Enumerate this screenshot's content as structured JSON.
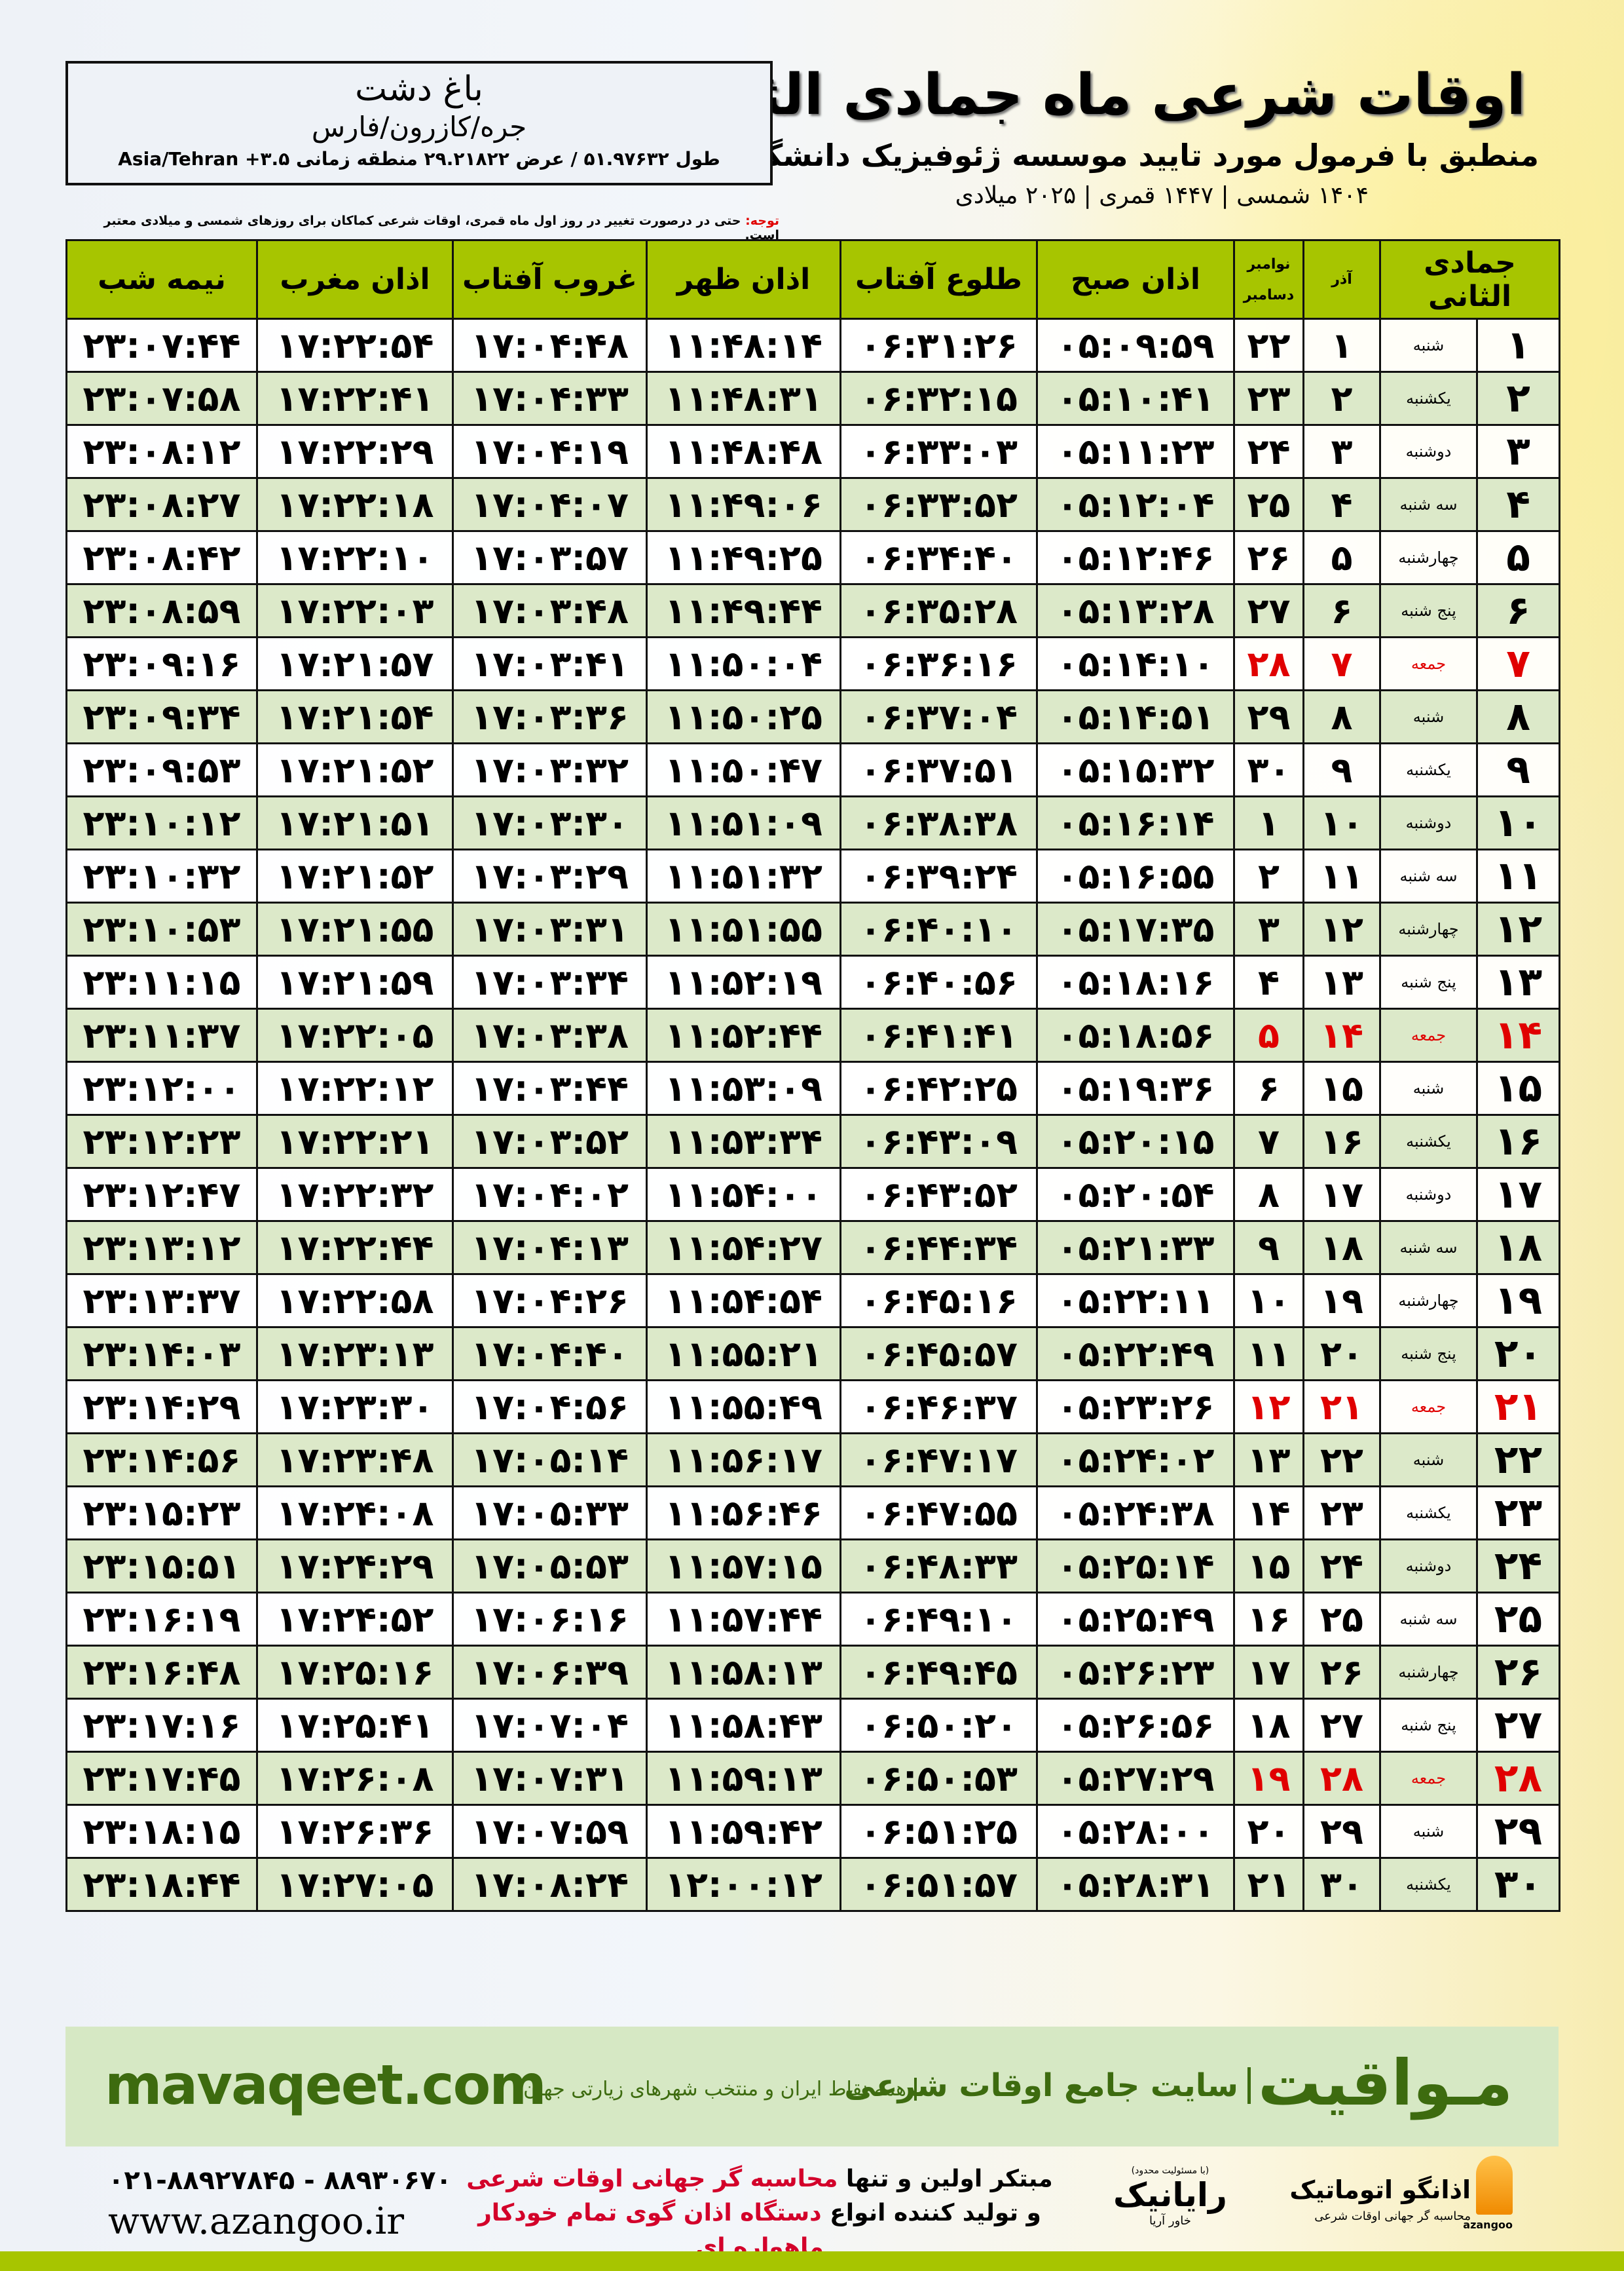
{
  "header": {
    "title": "اوقات شرعی ماه جمادی الثانی",
    "subtitle": "منطبق با فرمول مورد تایید موسسه ژئوفیزیک دانشگاه تهران",
    "years": "۱۴۰۴ شمسی | ۱۴۴۷ قمری | ۲۰۲۵ میلادی"
  },
  "location": {
    "city": "باغ دشت",
    "region": "جره/کازرون/فارس",
    "coords": "طول ۵۱.۹۷۶۳۲ / عرض ۲۹.۲۱۸۲۲ منطقه زمانی Asia/Tehran +۳.۵"
  },
  "note": {
    "label": "توجه:",
    "text": "حتی در درصورت تغییر در روز اول ماه قمری، اوقات شرعی کماکان برای روزهای شمسی و میلادی معتبر است."
  },
  "colors": {
    "header_green": "#a7c500",
    "row_green": "#dce9c9",
    "friday_red": "#e00000",
    "brand_green": "#3d6b0f"
  },
  "table": {
    "headers": {
      "month": "جمادی الثانی",
      "azar": "آذر",
      "november": "نوامبر",
      "december": "دسامبر",
      "fajr": "اذان صبح",
      "sunrise": "طلوع آفتاب",
      "dhuhr": "اذان ظهر",
      "sunset": "غروب آفتاب",
      "maghrib": "اذان مغرب",
      "midnight": "نیمه شب"
    },
    "rows": [
      [
        "۱",
        "شنبه",
        "۱",
        "۲۲",
        "۰۵:۰۹:۵۹",
        "۰۶:۳۱:۲۶",
        "۱۱:۴۸:۱۴",
        "۱۷:۰۴:۴۸",
        "۱۷:۲۲:۵۴",
        "۲۳:۰۷:۴۴"
      ],
      [
        "۲",
        "یکشنبه",
        "۲",
        "۲۳",
        "۰۵:۱۰:۴۱",
        "۰۶:۳۲:۱۵",
        "۱۱:۴۸:۳۱",
        "۱۷:۰۴:۳۳",
        "۱۷:۲۲:۴۱",
        "۲۳:۰۷:۵۸"
      ],
      [
        "۳",
        "دوشنبه",
        "۳",
        "۲۴",
        "۰۵:۱۱:۲۳",
        "۰۶:۳۳:۰۳",
        "۱۱:۴۸:۴۸",
        "۱۷:۰۴:۱۹",
        "۱۷:۲۲:۲۹",
        "۲۳:۰۸:۱۲"
      ],
      [
        "۴",
        "سه شنبه",
        "۴",
        "۲۵",
        "۰۵:۱۲:۰۴",
        "۰۶:۳۳:۵۲",
        "۱۱:۴۹:۰۶",
        "۱۷:۰۴:۰۷",
        "۱۷:۲۲:۱۸",
        "۲۳:۰۸:۲۷"
      ],
      [
        "۵",
        "چهارشنبه",
        "۵",
        "۲۶",
        "۰۵:۱۲:۴۶",
        "۰۶:۳۴:۴۰",
        "۱۱:۴۹:۲۵",
        "۱۷:۰۳:۵۷",
        "۱۷:۲۲:۱۰",
        "۲۳:۰۸:۴۲"
      ],
      [
        "۶",
        "پنج شنبه",
        "۶",
        "۲۷",
        "۰۵:۱۳:۲۸",
        "۰۶:۳۵:۲۸",
        "۱۱:۴۹:۴۴",
        "۱۷:۰۳:۴۸",
        "۱۷:۲۲:۰۳",
        "۲۳:۰۸:۵۹"
      ],
      [
        "۷",
        "جمعه",
        "۷",
        "۲۸",
        "۰۵:۱۴:۱۰",
        "۰۶:۳۶:۱۶",
        "۱۱:۵۰:۰۴",
        "۱۷:۰۳:۴۱",
        "۱۷:۲۱:۵۷",
        "۲۳:۰۹:۱۶"
      ],
      [
        "۸",
        "شنبه",
        "۸",
        "۲۹",
        "۰۵:۱۴:۵۱",
        "۰۶:۳۷:۰۴",
        "۱۱:۵۰:۲۵",
        "۱۷:۰۳:۳۶",
        "۱۷:۲۱:۵۴",
        "۲۳:۰۹:۳۴"
      ],
      [
        "۹",
        "یکشنبه",
        "۹",
        "۳۰",
        "۰۵:۱۵:۳۲",
        "۰۶:۳۷:۵۱",
        "۱۱:۵۰:۴۷",
        "۱۷:۰۳:۳۲",
        "۱۷:۲۱:۵۲",
        "۲۳:۰۹:۵۳"
      ],
      [
        "۱۰",
        "دوشنبه",
        "۱۰",
        "۱",
        "۰۵:۱۶:۱۴",
        "۰۶:۳۸:۳۸",
        "۱۱:۵۱:۰۹",
        "۱۷:۰۳:۳۰",
        "۱۷:۲۱:۵۱",
        "۲۳:۱۰:۱۲"
      ],
      [
        "۱۱",
        "سه شنبه",
        "۱۱",
        "۲",
        "۰۵:۱۶:۵۵",
        "۰۶:۳۹:۲۴",
        "۱۱:۵۱:۳۲",
        "۱۷:۰۳:۲۹",
        "۱۷:۲۱:۵۲",
        "۲۳:۱۰:۳۲"
      ],
      [
        "۱۲",
        "چهارشنبه",
        "۱۲",
        "۳",
        "۰۵:۱۷:۳۵",
        "۰۶:۴۰:۱۰",
        "۱۱:۵۱:۵۵",
        "۱۷:۰۳:۳۱",
        "۱۷:۲۱:۵۵",
        "۲۳:۱۰:۵۳"
      ],
      [
        "۱۳",
        "پنج شنبه",
        "۱۳",
        "۴",
        "۰۵:۱۸:۱۶",
        "۰۶:۴۰:۵۶",
        "۱۱:۵۲:۱۹",
        "۱۷:۰۳:۳۴",
        "۱۷:۲۱:۵۹",
        "۲۳:۱۱:۱۵"
      ],
      [
        "۱۴",
        "جمعه",
        "۱۴",
        "۵",
        "۰۵:۱۸:۵۶",
        "۰۶:۴۱:۴۱",
        "۱۱:۵۲:۴۴",
        "۱۷:۰۳:۳۸",
        "۱۷:۲۲:۰۵",
        "۲۳:۱۱:۳۷"
      ],
      [
        "۱۵",
        "شنبه",
        "۱۵",
        "۶",
        "۰۵:۱۹:۳۶",
        "۰۶:۴۲:۲۵",
        "۱۱:۵۳:۰۹",
        "۱۷:۰۳:۴۴",
        "۱۷:۲۲:۱۲",
        "۲۳:۱۲:۰۰"
      ],
      [
        "۱۶",
        "یکشنبه",
        "۱۶",
        "۷",
        "۰۵:۲۰:۱۵",
        "۰۶:۴۳:۰۹",
        "۱۱:۵۳:۳۴",
        "۱۷:۰۳:۵۲",
        "۱۷:۲۲:۲۱",
        "۲۳:۱۲:۲۳"
      ],
      [
        "۱۷",
        "دوشنبه",
        "۱۷",
        "۸",
        "۰۵:۲۰:۵۴",
        "۰۶:۴۳:۵۲",
        "۱۱:۵۴:۰۰",
        "۱۷:۰۴:۰۲",
        "۱۷:۲۲:۳۲",
        "۲۳:۱۲:۴۷"
      ],
      [
        "۱۸",
        "سه شنبه",
        "۱۸",
        "۹",
        "۰۵:۲۱:۳۳",
        "۰۶:۴۴:۳۴",
        "۱۱:۵۴:۲۷",
        "۱۷:۰۴:۱۳",
        "۱۷:۲۲:۴۴",
        "۲۳:۱۳:۱۲"
      ],
      [
        "۱۹",
        "چهارشنبه",
        "۱۹",
        "۱۰",
        "۰۵:۲۲:۱۱",
        "۰۶:۴۵:۱۶",
        "۱۱:۵۴:۵۴",
        "۱۷:۰۴:۲۶",
        "۱۷:۲۲:۵۸",
        "۲۳:۱۳:۳۷"
      ],
      [
        "۲۰",
        "پنج شنبه",
        "۲۰",
        "۱۱",
        "۰۵:۲۲:۴۹",
        "۰۶:۴۵:۵۷",
        "۱۱:۵۵:۲۱",
        "۱۷:۰۴:۴۰",
        "۱۷:۲۳:۱۳",
        "۲۳:۱۴:۰۳"
      ],
      [
        "۲۱",
        "جمعه",
        "۲۱",
        "۱۲",
        "۰۵:۲۳:۲۶",
        "۰۶:۴۶:۳۷",
        "۱۱:۵۵:۴۹",
        "۱۷:۰۴:۵۶",
        "۱۷:۲۳:۳۰",
        "۲۳:۱۴:۲۹"
      ],
      [
        "۲۲",
        "شنبه",
        "۲۲",
        "۱۳",
        "۰۵:۲۴:۰۲",
        "۰۶:۴۷:۱۷",
        "۱۱:۵۶:۱۷",
        "۱۷:۰۵:۱۴",
        "۱۷:۲۳:۴۸",
        "۲۳:۱۴:۵۶"
      ],
      [
        "۲۳",
        "یکشنبه",
        "۲۳",
        "۱۴",
        "۰۵:۲۴:۳۸",
        "۰۶:۴۷:۵۵",
        "۱۱:۵۶:۴۶",
        "۱۷:۰۵:۳۳",
        "۱۷:۲۴:۰۸",
        "۲۳:۱۵:۲۳"
      ],
      [
        "۲۴",
        "دوشنبه",
        "۲۴",
        "۱۵",
        "۰۵:۲۵:۱۴",
        "۰۶:۴۸:۳۳",
        "۱۱:۵۷:۱۵",
        "۱۷:۰۵:۵۳",
        "۱۷:۲۴:۲۹",
        "۲۳:۱۵:۵۱"
      ],
      [
        "۲۵",
        "سه شنبه",
        "۲۵",
        "۱۶",
        "۰۵:۲۵:۴۹",
        "۰۶:۴۹:۱۰",
        "۱۱:۵۷:۴۴",
        "۱۷:۰۶:۱۶",
        "۱۷:۲۴:۵۲",
        "۲۳:۱۶:۱۹"
      ],
      [
        "۲۶",
        "چهارشنبه",
        "۲۶",
        "۱۷",
        "۰۵:۲۶:۲۳",
        "۰۶:۴۹:۴۵",
        "۱۱:۵۸:۱۳",
        "۱۷:۰۶:۳۹",
        "۱۷:۲۵:۱۶",
        "۲۳:۱۶:۴۸"
      ],
      [
        "۲۷",
        "پنج شنبه",
        "۲۷",
        "۱۸",
        "۰۵:۲۶:۵۶",
        "۰۶:۵۰:۲۰",
        "۱۱:۵۸:۴۳",
        "۱۷:۰۷:۰۴",
        "۱۷:۲۵:۴۱",
        "۲۳:۱۷:۱۶"
      ],
      [
        "۲۸",
        "جمعه",
        "۲۸",
        "۱۹",
        "۰۵:۲۷:۲۹",
        "۰۶:۵۰:۵۳",
        "۱۱:۵۹:۱۳",
        "۱۷:۰۷:۳۱",
        "۱۷:۲۶:۰۸",
        "۲۳:۱۷:۴۵"
      ],
      [
        "۲۹",
        "شنبه",
        "۲۹",
        "۲۰",
        "۰۵:۲۸:۰۰",
        "۰۶:۵۱:۲۵",
        "۱۱:۵۹:۴۲",
        "۱۷:۰۷:۵۹",
        "۱۷:۲۶:۳۶",
        "۲۳:۱۸:۱۵"
      ],
      [
        "۳۰",
        "یکشنبه",
        "۳۰",
        "۲۱",
        "۰۵:۲۸:۳۱",
        "۰۶:۵۱:۵۷",
        "۱۲:۰۰:۱۲",
        "۱۷:۰۸:۲۴",
        "۱۷:۲۷:۰۵",
        "۲۳:۱۸:۴۴"
      ]
    ]
  },
  "banner": {
    "logo": "مـواقیت",
    "site": "سایت جامع اوقات شرعی",
    "tagline": "همه نقاط ایران و منتخب شهرهای زیارتی جهان",
    "url": "mavaqeet.com"
  },
  "footer": {
    "phone": "۰۲۱-۸۸۹۲۷۸۴۵ - ۸۸۹۳۰۶۷۰",
    "website": "www.azangoo.ir",
    "promo1_a": "مبتکر اولین و تنها ",
    "promo1_b": "محاسبه گر جهانی اوقات شرعی",
    "promo2_a": "و تولید کننده انواع ",
    "promo2_b": "دستگاه اذان گوی تمام خودکار ماهواره ای",
    "rayanik_note": "(با مسئولیت محدود)",
    "rayanik_name": "رایانیک",
    "rayanik_sub": "خاور آریا",
    "azangoo_name": "اذانگو اتوماتیک",
    "azangoo_sub": "محاسبه گر جهانی اوقات شرعی",
    "azangoo_en": "azangoo"
  }
}
